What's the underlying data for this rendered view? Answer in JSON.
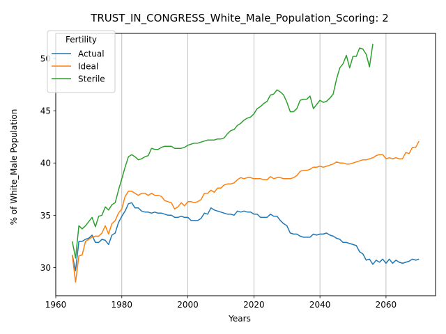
{
  "chart_data": {
    "type": "line",
    "title": "TRUST_IN_CONGRESS_White_Male_Population_Scoring: 2",
    "xlabel": "Years",
    "ylabel": "% of White_Male Population",
    "xlim": [
      1960,
      2075
    ],
    "ylim": [
      27.3,
      52.4
    ],
    "xticks": [
      1960,
      1980,
      2000,
      2020,
      2040,
      2060
    ],
    "yticks": [
      30,
      35,
      40,
      45,
      50
    ],
    "grid": {
      "x": true,
      "y": false
    },
    "legend": {
      "title": "Fertility",
      "placement": "top-left"
    },
    "series": [
      {
        "name": "Actual",
        "color": "#1f77b4",
        "x": [
          1965,
          1966,
          1967,
          1968,
          1969,
          1970,
          1971,
          1972,
          1973,
          1974,
          1975,
          1976,
          1977,
          1978,
          1979,
          1980,
          1981,
          1982,
          1983,
          1984,
          1985,
          1986,
          1987,
          1988,
          1989,
          1990,
          1991,
          1992,
          1993,
          1994,
          1995,
          1996,
          1997,
          1998,
          1999,
          2000,
          2001,
          2002,
          2003,
          2004,
          2005,
          2006,
          2007,
          2008,
          2009,
          2010,
          2011,
          2012,
          2013,
          2014,
          2015,
          2016,
          2017,
          2018,
          2019,
          2020,
          2021,
          2022,
          2023,
          2024,
          2025,
          2026,
          2027,
          2028,
          2029,
          2030,
          2031,
          2032,
          2033,
          2034,
          2035,
          2036,
          2037,
          2038,
          2039,
          2040,
          2041,
          2042,
          2043,
          2044,
          2045,
          2046,
          2047,
          2048,
          2049,
          2050,
          2051,
          2052,
          2053,
          2054,
          2055,
          2056,
          2057,
          2058,
          2059,
          2060,
          2061,
          2062,
          2063,
          2064,
          2065,
          2066,
          2067,
          2068,
          2069,
          2070
        ],
        "y": [
          31.2,
          29.7,
          32.5,
          32.5,
          32.7,
          32.8,
          33.1,
          32.4,
          32.4,
          32.7,
          32.6,
          32.2,
          33.1,
          33.3,
          34.3,
          34.9,
          35.4,
          36.1,
          36.2,
          35.7,
          35.7,
          35.4,
          35.3,
          35.3,
          35.2,
          35.3,
          35.2,
          35.2,
          35.1,
          35.0,
          35.0,
          34.8,
          34.8,
          34.9,
          34.8,
          34.8,
          34.5,
          34.5,
          34.5,
          34.7,
          35.2,
          35.1,
          35.7,
          35.5,
          35.4,
          35.3,
          35.2,
          35.1,
          35.1,
          35.0,
          35.4,
          35.3,
          35.4,
          35.3,
          35.3,
          35.1,
          35.1,
          34.8,
          34.8,
          34.8,
          35.1,
          34.9,
          34.9,
          34.5,
          34.2,
          34.0,
          33.3,
          33.2,
          33.2,
          33.0,
          32.9,
          32.9,
          32.9,
          33.2,
          33.1,
          33.2,
          33.2,
          33.3,
          33.1,
          33.0,
          32.8,
          32.7,
          32.4,
          32.4,
          32.3,
          32.2,
          32.1,
          31.5,
          31.3,
          30.7,
          30.8,
          30.3,
          30.7,
          30.5,
          30.8,
          30.4,
          30.8,
          30.4,
          30.7,
          30.5,
          30.4,
          30.5,
          30.6,
          30.8,
          30.7,
          30.8
        ]
      },
      {
        "name": "Ideal",
        "color": "#ff7f0e",
        "x": [
          1965,
          1966,
          1967,
          1968,
          1969,
          1970,
          1971,
          1972,
          1973,
          1974,
          1975,
          1976,
          1977,
          1978,
          1979,
          1980,
          1981,
          1982,
          1983,
          1984,
          1985,
          1986,
          1987,
          1988,
          1989,
          1990,
          1991,
          1992,
          1993,
          1994,
          1995,
          1996,
          1997,
          1998,
          1999,
          2000,
          2001,
          2002,
          2003,
          2004,
          2005,
          2006,
          2007,
          2008,
          2009,
          2010,
          2011,
          2012,
          2013,
          2014,
          2015,
          2016,
          2017,
          2018,
          2019,
          2020,
          2021,
          2022,
          2023,
          2024,
          2025,
          2026,
          2027,
          2028,
          2029,
          2030,
          2031,
          2032,
          2033,
          2034,
          2035,
          2036,
          2037,
          2038,
          2039,
          2040,
          2041,
          2042,
          2043,
          2044,
          2045,
          2046,
          2047,
          2048,
          2049,
          2050,
          2051,
          2052,
          2053,
          2054,
          2055,
          2056,
          2057,
          2058,
          2059,
          2060,
          2061,
          2062,
          2063,
          2064,
          2065,
          2066,
          2067,
          2068,
          2069,
          2070
        ],
        "y": [
          31.2,
          28.6,
          31.1,
          31.2,
          32.5,
          32.7,
          32.9,
          33.0,
          33.0,
          33.3,
          34.0,
          33.2,
          34.2,
          34.5,
          35.2,
          35.6,
          36.8,
          37.3,
          37.3,
          37.1,
          36.9,
          37.1,
          37.1,
          36.9,
          37.1,
          36.9,
          36.9,
          36.8,
          36.4,
          36.3,
          36.2,
          35.6,
          35.8,
          36.2,
          35.9,
          36.3,
          36.3,
          36.2,
          36.3,
          36.5,
          37.1,
          37.1,
          37.4,
          37.2,
          37.6,
          37.6,
          37.9,
          38.0,
          38.0,
          38.1,
          38.4,
          38.6,
          38.5,
          38.6,
          38.6,
          38.5,
          38.5,
          38.5,
          38.4,
          38.4,
          38.7,
          38.5,
          38.6,
          38.6,
          38.5,
          38.5,
          38.5,
          38.6,
          38.8,
          39.2,
          39.3,
          39.3,
          39.4,
          39.6,
          39.6,
          39.7,
          39.6,
          39.7,
          39.8,
          39.9,
          40.1,
          40.0,
          40.0,
          39.9,
          39.9,
          40.0,
          40.1,
          40.2,
          40.3,
          40.3,
          40.4,
          40.5,
          40.7,
          40.8,
          40.8,
          40.4,
          40.5,
          40.4,
          40.5,
          40.4,
          40.4,
          41.0,
          40.9,
          41.5,
          41.5,
          42.1
        ]
      },
      {
        "name": "Sterile",
        "color": "#2ca02c",
        "x": [
          1965,
          1966,
          1967,
          1968,
          1969,
          1970,
          1971,
          1972,
          1973,
          1974,
          1975,
          1976,
          1977,
          1978,
          1979,
          1980,
          1981,
          1982,
          1983,
          1984,
          1985,
          1986,
          1987,
          1988,
          1989,
          1990,
          1991,
          1992,
          1993,
          1994,
          1995,
          1996,
          1997,
          1998,
          1999,
          2000,
          2001,
          2002,
          2003,
          2004,
          2005,
          2006,
          2007,
          2008,
          2009,
          2010,
          2011,
          2012,
          2013,
          2014,
          2015,
          2016,
          2017,
          2018,
          2019,
          2020,
          2021,
          2022,
          2023,
          2024,
          2025,
          2026,
          2027,
          2028,
          2029,
          2030,
          2031,
          2032,
          2033,
          2034,
          2035,
          2036,
          2037,
          2038,
          2039,
          2040,
          2041,
          2042,
          2043,
          2044,
          2045,
          2046,
          2047,
          2048,
          2049,
          2050,
          2051,
          2052,
          2053,
          2054,
          2055,
          2056
        ],
        "y": [
          32.5,
          30.9,
          34.0,
          33.7,
          34.0,
          34.4,
          34.8,
          33.9,
          34.9,
          35.0,
          35.8,
          35.5,
          36.0,
          36.2,
          37.4,
          38.5,
          39.6,
          40.6,
          40.8,
          40.6,
          40.3,
          40.4,
          40.6,
          40.7,
          41.4,
          41.3,
          41.3,
          41.5,
          41.6,
          41.6,
          41.6,
          41.4,
          41.4,
          41.4,
          41.5,
          41.7,
          41.8,
          41.9,
          41.9,
          42.0,
          42.1,
          42.2,
          42.2,
          42.2,
          42.3,
          42.3,
          42.4,
          42.8,
          43.1,
          43.2,
          43.6,
          43.8,
          44.1,
          44.3,
          44.4,
          44.7,
          45.2,
          45.4,
          45.7,
          45.9,
          46.5,
          46.6,
          47.0,
          46.8,
          46.5,
          45.8,
          44.9,
          44.9,
          45.2,
          46.0,
          46.1,
          46.1,
          46.4,
          45.2,
          45.6,
          46.0,
          45.8,
          45.9,
          46.2,
          46.6,
          48.0,
          49.1,
          49.5,
          50.3,
          49.1,
          50.2,
          50.2,
          51.0,
          50.9,
          50.4,
          49.2,
          51.4
        ]
      }
    ]
  }
}
